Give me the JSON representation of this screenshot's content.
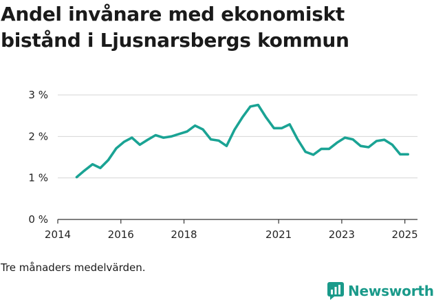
{
  "title": "Andel invånare med ekonomiskt bistånd i Ljusnarsbergs kommun",
  "note": "Tre månaders medelvärden.",
  "brand": {
    "name": "Newsworthy",
    "icon": "newsworthy-logo-icon",
    "color": "#1a9a8a"
  },
  "colors": {
    "line": "#1aa394",
    "grid": "#d4d4d4",
    "axis": "#333333"
  },
  "chart_data": {
    "type": "line",
    "title": "Andel invånare med ekonomiskt bistånd i Ljusnarsbergs kommun",
    "xlabel": "",
    "ylabel": "",
    "xlim": [
      2014.0,
      2025.4
    ],
    "ylim": [
      0,
      3
    ],
    "x_ticks": [
      2014,
      2016,
      2018,
      2021,
      2023,
      2025
    ],
    "y_ticks": [
      0,
      1,
      2,
      3
    ],
    "y_tick_labels": [
      "0 %",
      "1 %",
      "2 %",
      "3 %"
    ],
    "grid": true,
    "legend": "none",
    "series": [
      {
        "x": [
          2014.6,
          2014.85,
          2015.1,
          2015.35,
          2015.6,
          2015.85,
          2016.1,
          2016.35,
          2016.6,
          2016.85,
          2017.1,
          2017.35,
          2017.6,
          2017.85,
          2018.1,
          2018.35,
          2018.6,
          2018.85,
          2019.1,
          2019.35,
          2019.6,
          2019.85,
          2020.1,
          2020.35,
          2020.6,
          2020.85,
          2021.1,
          2021.35,
          2021.6,
          2021.85,
          2022.1,
          2022.35,
          2022.6,
          2022.85,
          2023.1,
          2023.35,
          2023.6,
          2023.85,
          2024.1,
          2024.35,
          2024.6,
          2024.85,
          2025.1
        ],
        "y": [
          1.02,
          1.18,
          1.33,
          1.24,
          1.43,
          1.71,
          1.87,
          1.97,
          1.8,
          1.92,
          2.03,
          1.97,
          2.0,
          2.06,
          2.12,
          2.26,
          2.17,
          1.93,
          1.9,
          1.77,
          2.16,
          2.46,
          2.72,
          2.76,
          2.46,
          2.2,
          2.2,
          2.29,
          1.93,
          1.63,
          1.56,
          1.7,
          1.7,
          1.85,
          1.97,
          1.93,
          1.77,
          1.74,
          1.89,
          1.92,
          1.8,
          1.57,
          1.57
        ]
      }
    ]
  }
}
